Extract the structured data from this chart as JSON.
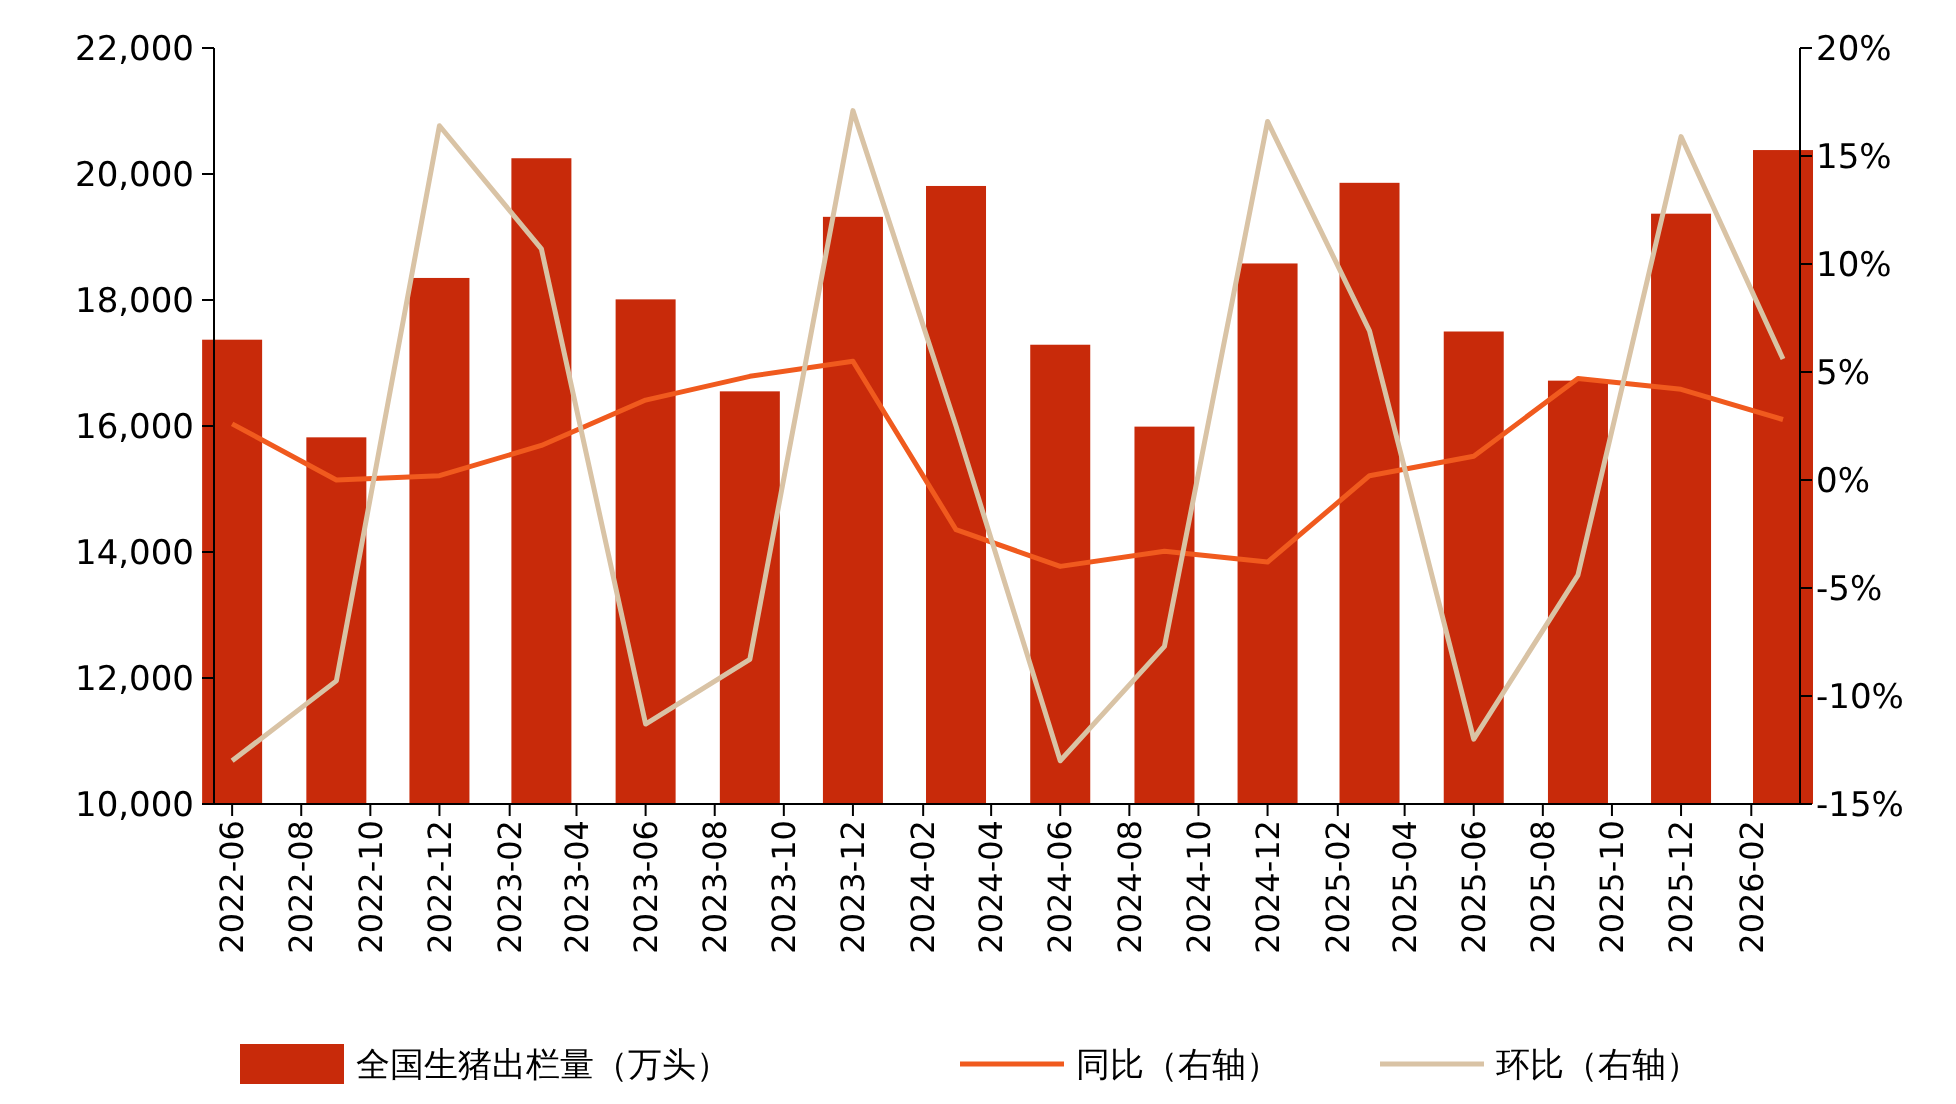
{
  "chart_data": {
    "type": "bar",
    "x": [
      "2022-06",
      "2022-09",
      "2022-12",
      "2023-03",
      "2023-06",
      "2023-09",
      "2023-12",
      "2024-03",
      "2024-06",
      "2024-09",
      "2024-12",
      "2025-03",
      "2025-06",
      "2025-09",
      "2025-12",
      "2026-03"
    ],
    "series": [
      {
        "name": "全国生猪出栏量（万头）",
        "color": "#c82a0a",
        "values": [
          17370,
          15820,
          18350,
          20250,
          18010,
          16550,
          19320,
          19810,
          17290,
          15990,
          18580,
          19860,
          17500,
          16720,
          19370,
          20380
        ]
      },
      {
        "name": "同比（右轴）",
        "type": "line",
        "axis": "y2",
        "color": "#f05a1e",
        "values": [
          2.6,
          0.0,
          0.2,
          1.6,
          3.7,
          4.8,
          5.5,
          -2.3,
          -4.0,
          -3.3,
          -3.8,
          0.2,
          1.1,
          4.7,
          4.2,
          2.8
        ]
      },
      {
        "name": "环比（右轴）",
        "type": "line",
        "axis": "y2",
        "color": "#d9c3a5",
        "values": [
          -13.0,
          -9.3,
          16.4,
          10.7,
          -11.3,
          -8.3,
          17.1,
          2.5,
          -13.0,
          -7.7,
          16.6,
          6.9,
          -12.0,
          -4.4,
          15.9,
          5.6
        ]
      }
    ],
    "xlim": [
      "2022-05-16",
      "2026-03-16"
    ],
    "xticks": [
      {
        "value": "2022-06",
        "label": "2022-06"
      },
      {
        "value": "2022-08",
        "label": "2022-08"
      },
      {
        "value": "2022-10",
        "label": "2022-10"
      },
      {
        "value": "2022-12",
        "label": "2022-12"
      },
      {
        "value": "2023-02",
        "label": "2023-02"
      },
      {
        "value": "2023-04",
        "label": "2023-04"
      },
      {
        "value": "2023-06",
        "label": "2023-06"
      },
      {
        "value": "2023-08",
        "label": "2023-08"
      },
      {
        "value": "2023-10",
        "label": "2023-10"
      },
      {
        "value": "2023-12",
        "label": "2023-12"
      },
      {
        "value": "2024-02",
        "label": "2024-02"
      },
      {
        "value": "2024-04",
        "label": "2024-04"
      },
      {
        "value": "2024-06",
        "label": "2024-06"
      },
      {
        "value": "2024-08",
        "label": "2024-08"
      },
      {
        "value": "2024-10",
        "label": "2024-10"
      },
      {
        "value": "2024-12",
        "label": "2024-12"
      },
      {
        "value": "2025-02",
        "label": "2025-02"
      },
      {
        "value": "2025-04",
        "label": "2025-04"
      },
      {
        "value": "2025-06",
        "label": "2025-06"
      },
      {
        "value": "2025-08",
        "label": "2025-08"
      },
      {
        "value": "2025-10",
        "label": "2025-10"
      },
      {
        "value": "2025-12",
        "label": "2025-12"
      },
      {
        "value": "2026-02",
        "label": "2026-02"
      }
    ],
    "ylim": [
      10000,
      22000
    ],
    "yticks": [
      {
        "value": 10000,
        "label": "10,000"
      },
      {
        "value": 12000,
        "label": "12,000"
      },
      {
        "value": 14000,
        "label": "14,000"
      },
      {
        "value": 16000,
        "label": "16,000"
      },
      {
        "value": 18000,
        "label": "18,000"
      },
      {
        "value": 20000,
        "label": "20,000"
      },
      {
        "value": 22000,
        "label": "22,000"
      }
    ],
    "y2lim": [
      -15,
      20
    ],
    "y2ticks": [
      {
        "value": -15,
        "label": "-15%"
      },
      {
        "value": -10,
        "label": "-10%"
      },
      {
        "value": -5,
        "label": "-5%"
      },
      {
        "value": 0,
        "label": "0%"
      },
      {
        "value": 5,
        "label": "5%"
      },
      {
        "value": 10,
        "label": "10%"
      },
      {
        "value": 15,
        "label": "15%"
      },
      {
        "value": 20,
        "label": "20%"
      }
    ],
    "grid": false,
    "legend": "bottom"
  }
}
